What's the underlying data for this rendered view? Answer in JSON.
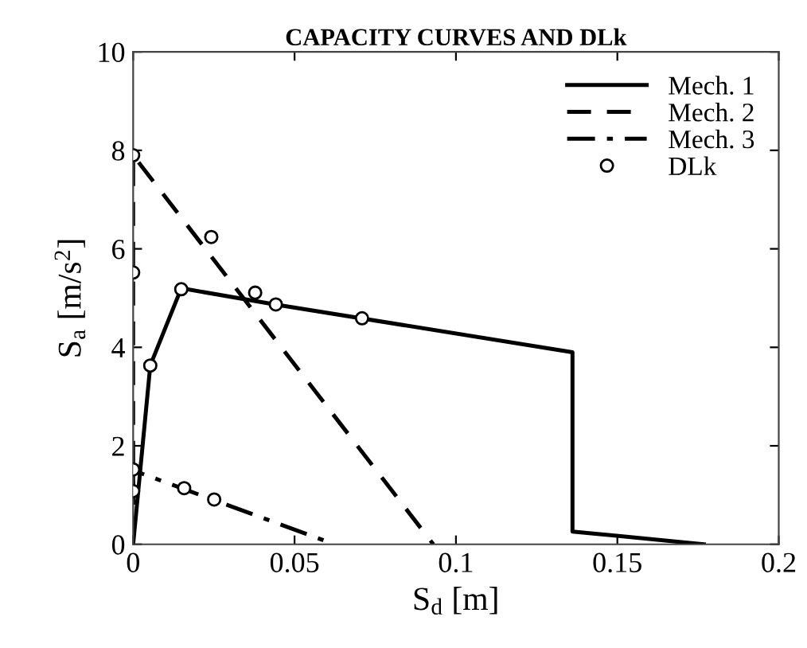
{
  "chart_data": {
    "type": "line",
    "title": "CAPACITY CURVES AND DLk",
    "xlabel": "S$_{d}$ [m]",
    "ylabel": "S$_{a}$ [m/s$^{2}$]",
    "xlim": [
      0,
      0.2
    ],
    "ylim": [
      0,
      10
    ],
    "xticks": [
      0,
      0.05,
      0.1,
      0.15,
      0.2
    ],
    "yticks": [
      0,
      2,
      4,
      6,
      8,
      10
    ],
    "grid": false,
    "legend": "top right",
    "series": [
      {
        "name": "Mech. 1",
        "color": "#000000",
        "line_style": "solid",
        "marker": "none",
        "x": [
          0,
          0.0053,
          0.0149,
          0.044,
          0.1361,
          0.1361,
          0.1768
        ],
        "values": [
          0,
          3.63,
          5.2,
          4.87,
          3.9,
          0.26,
          0
        ]
      },
      {
        "name": "Mech. 2",
        "color": "#000000",
        "line_style": "dashed",
        "marker": "none",
        "x": [
          0,
          0,
          0.093
        ],
        "values": [
          0,
          7.9,
          0
        ]
      },
      {
        "name": "Mech. 3",
        "color": "#000000",
        "line_style": "dashdot",
        "marker": "none",
        "x": [
          0,
          0,
          0.0624
        ],
        "values": [
          0,
          1.5,
          0
        ]
      },
      {
        "name": "DLk",
        "type": "scatter",
        "color": "#000000",
        "marker": "circle",
        "x": [
          0,
          0,
          0.0242,
          0.0149,
          0.0053,
          0.0378,
          0.0442,
          0.0709,
          0,
          0,
          0.0158,
          0.0251
        ],
        "values": [
          7.9,
          5.52,
          6.24,
          5.18,
          3.63,
          5.11,
          4.87,
          4.59,
          1.52,
          1.08,
          1.14,
          0.91
        ]
      }
    ]
  }
}
